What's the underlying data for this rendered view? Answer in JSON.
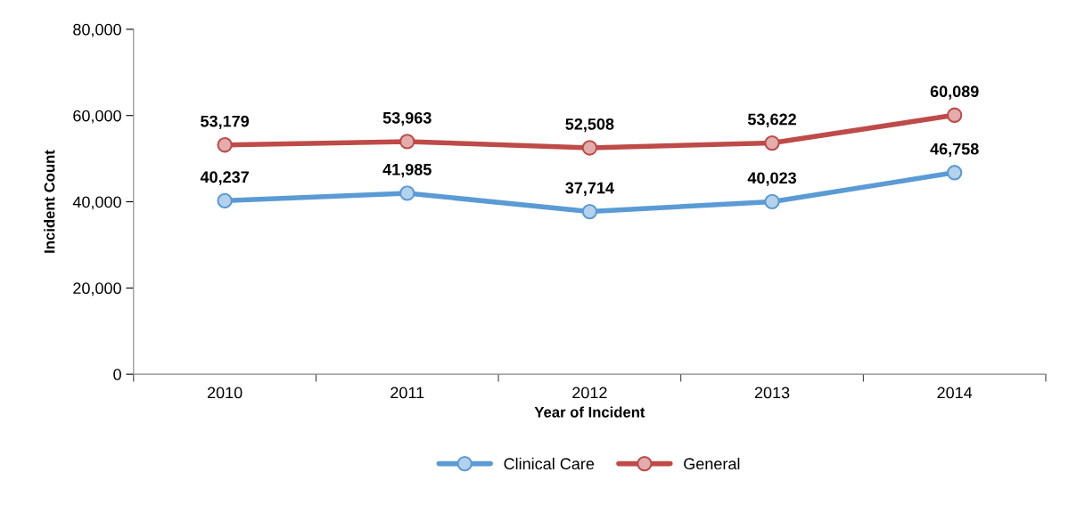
{
  "chart_data": {
    "type": "line",
    "xlabel": "Year of Incident",
    "ylabel": "Incident Count",
    "categories": [
      "2010",
      "2011",
      "2012",
      "2013",
      "2014"
    ],
    "series": [
      {
        "name": "Clinical Care",
        "color": "#5b9bd5",
        "values": [
          40237,
          41985,
          37714,
          40023,
          46758
        ],
        "value_labels": [
          "40,237",
          "41,985",
          "37,714",
          "40,023",
          "46,758"
        ]
      },
      {
        "name": "General",
        "color": "#be4b48",
        "values": [
          53179,
          53963,
          52508,
          53622,
          60089
        ],
        "value_labels": [
          "53,179",
          "53,963",
          "52,508",
          "53,622",
          "60,089"
        ]
      }
    ],
    "ylim": [
      0,
      80000
    ],
    "yticks": [
      0,
      {
        "value": 20000,
        "label": "20,000"
      },
      {
        "value": 40000,
        "label": "40,000"
      },
      {
        "value": 60000,
        "label": "60,000"
      },
      {
        "value": 80000,
        "label": "80,000"
      }
    ],
    "grid": false,
    "legend": "bottom",
    "marker": "circle",
    "line_style": "solid"
  }
}
